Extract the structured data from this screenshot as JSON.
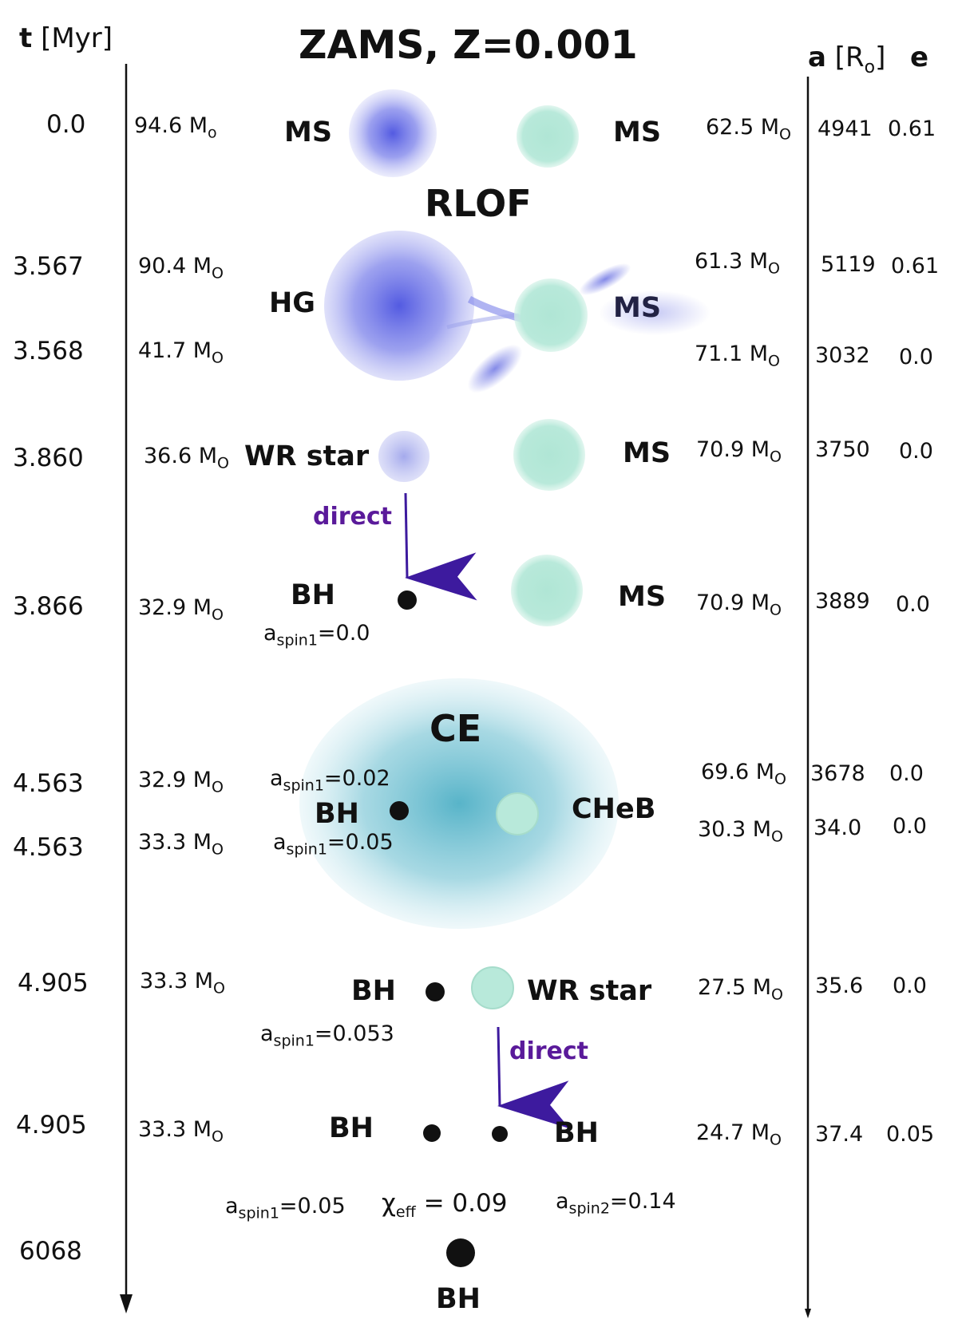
{
  "title": "ZAMS, Z=0.001",
  "time_header_symbol": "t",
  "time_header_unit": "[Myr]",
  "sep_header_symbol": "a",
  "sep_header_unit": "[R",
  "sep_header_unit_sub": "o",
  "sep_header_unit_end": "]",
  "ecc_header": "e",
  "process_labels": {
    "rlof": "RLOF",
    "ce": "CE"
  },
  "direct_label": "direct",
  "chi_eff": {
    "symbol": "χ",
    "sub": "eff",
    "value": "= 0.09"
  },
  "final_bh_label": "BH",
  "colors": {
    "primary": "#5b63e0",
    "secondary": "#b6e8d8",
    "ce": "#57b7c9",
    "arrow": "#3d1a9e",
    "direct_text": "#5a1a9a"
  },
  "stages": [
    {
      "time": "0.0",
      "m1": "94.6 M",
      "m1_sub": "o",
      "s1": "MS",
      "s2": "MS",
      "m2": "62.5 M",
      "m2_sub": "O",
      "a": "4941",
      "e": "0.61"
    },
    {
      "time": "3.567",
      "m1": "90.4 M",
      "m1_sub": "O",
      "s1": "HG",
      "s2": "MS",
      "m2": "61.3 M",
      "m2_sub": "O",
      "a": "5119",
      "e": "0.61"
    },
    {
      "time": "3.568",
      "m1": "41.7 M",
      "m1_sub": "O",
      "m2": "71.1 M",
      "m2_sub": "O",
      "a": "3032",
      "e": "0.0"
    },
    {
      "time": "3.860",
      "m1": "36.6 M",
      "m1_sub": "O",
      "s1": "WR star",
      "s2": "MS",
      "m2": "70.9 M",
      "m2_sub": "O",
      "a": "3750",
      "e": "0.0"
    },
    {
      "time": "3.866",
      "m1": "32.9 M",
      "m1_sub": "O",
      "s1": "BH",
      "s2": "MS",
      "m2": "70.9 M",
      "m2_sub": "O",
      "a": "3889",
      "e": "0.0",
      "spin_sym": "a",
      "spin_sub": "spin1",
      "spin_val": "=0.0"
    },
    {
      "time": "4.563",
      "m1": "32.9 M",
      "m1_sub": "O",
      "m2": "69.6 M",
      "m2_sub": "O",
      "a": "3678",
      "e": "0.0",
      "spin_sym": "a",
      "spin_sub": "spin1",
      "spin_val": "=0.02"
    },
    {
      "time": "4.563",
      "m1": "33.3 M",
      "m1_sub": "O",
      "s1": "BH",
      "s2": "CHeB",
      "m2": "30.3 M",
      "m2_sub": "O",
      "a": "34.0",
      "e": "0.0",
      "spin_sym": "a",
      "spin_sub": "spin1",
      "spin_val": "=0.05"
    },
    {
      "time": "4.905",
      "m1": "33.3 M",
      "m1_sub": "O",
      "s1": "BH",
      "s2": "WR star",
      "m2": "27.5 M",
      "m2_sub": "O",
      "a": "35.6",
      "e": "0.0",
      "spin_sym": "a",
      "spin_sub": "spin1",
      "spin_val": "=0.053"
    },
    {
      "time": "4.905",
      "m1": "33.3 M",
      "m1_sub": "O",
      "s1": "BH",
      "s2": "BH",
      "m2": "24.7 M",
      "m2_sub": "O",
      "a": "37.4",
      "e": "0.05",
      "spin_sym": "a",
      "spin_sub": "spin1",
      "spin_val": "=0.05",
      "spin2_sym": "a",
      "spin2_sub": "spin2",
      "spin2_val": "=0.14"
    },
    {
      "time": "6068"
    }
  ]
}
